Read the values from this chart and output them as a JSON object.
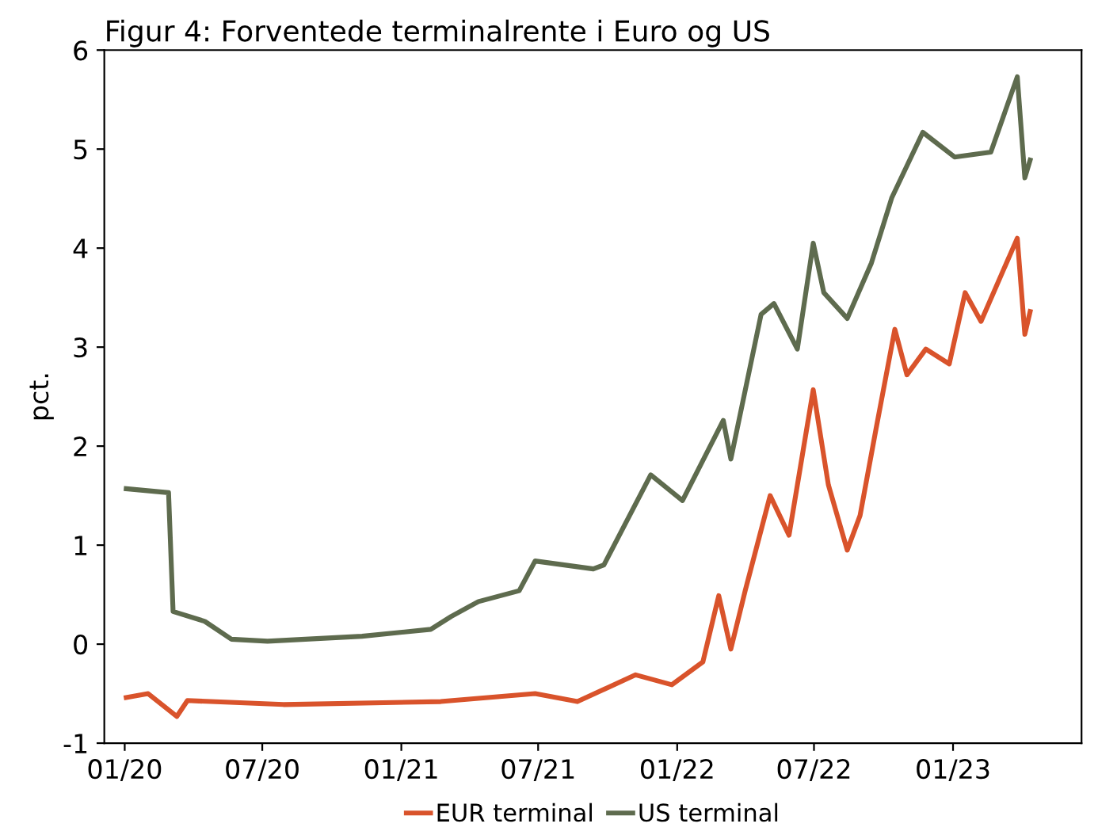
{
  "chart_data": {
    "type": "line",
    "title": "Figur 4: Forventede terminalrente i Euro og US",
    "ylabel": "pct.",
    "xlim": [
      "2019-12-05",
      "2023-06-20"
    ],
    "ylim": [
      -1,
      6
    ],
    "yticks": [
      -1,
      0,
      1,
      2,
      3,
      4,
      5,
      6
    ],
    "xticks": [
      {
        "value": "2020-01-01",
        "label": "01/20"
      },
      {
        "value": "2020-07-01",
        "label": "07/20"
      },
      {
        "value": "2021-01-01",
        "label": "01/21"
      },
      {
        "value": "2021-07-01",
        "label": "07/21"
      },
      {
        "value": "2022-01-01",
        "label": "01/22"
      },
      {
        "value": "2022-07-01",
        "label": "07/22"
      },
      {
        "value": "2023-01-01",
        "label": "01/23"
      }
    ],
    "legend": "bottom",
    "grid": false,
    "marker": "none",
    "line_style": "solid",
    "series": [
      {
        "name": "EUR terminal",
        "color": "#d9532b",
        "x": [
          "2020-01-03",
          "2020-02-01",
          "2020-03-10",
          "2020-03-24",
          "2020-07-29",
          "2021-02-22",
          "2021-06-27",
          "2021-08-22",
          "2021-11-07",
          "2021-12-25",
          "2022-02-04",
          "2022-02-25",
          "2022-03-13",
          "2022-04-01",
          "2022-05-04",
          "2022-05-29",
          "2022-06-30",
          "2022-07-20",
          "2022-08-14",
          "2022-08-31",
          "2022-09-21",
          "2022-10-16",
          "2022-11-01",
          "2022-11-26",
          "2022-12-27",
          "2023-01-17",
          "2023-02-07",
          "2023-03-27",
          "2023-04-06",
          "2023-04-13"
        ],
        "values": [
          -0.54,
          -0.5,
          -0.73,
          -0.57,
          -0.61,
          -0.58,
          -0.5,
          -0.58,
          -0.31,
          -0.41,
          -0.18,
          0.49,
          -0.05,
          0.54,
          1.5,
          1.1,
          2.57,
          1.61,
          0.95,
          1.3,
          2.17,
          3.18,
          2.72,
          2.98,
          2.83,
          3.55,
          3.26,
          4.1,
          3.13,
          3.36
        ]
      },
      {
        "name": "US terminal",
        "color": "#5e6b4e",
        "x": [
          "2020-01-03",
          "2020-02-28",
          "2020-03-05",
          "2020-04-16",
          "2020-05-21",
          "2020-07-08",
          "2020-11-10",
          "2021-02-09",
          "2021-03-08",
          "2021-04-13",
          "2021-06-06",
          "2021-06-27",
          "2021-09-12",
          "2021-09-26",
          "2021-11-27",
          "2022-01-08",
          "2022-03-03",
          "2022-03-13",
          "2022-04-22",
          "2022-05-09",
          "2022-06-09",
          "2022-06-30",
          "2022-07-14",
          "2022-08-14",
          "2022-09-15",
          "2022-10-12",
          "2022-11-22",
          "2023-01-03",
          "2023-02-20",
          "2023-03-27",
          "2023-04-06",
          "2023-04-13"
        ],
        "values": [
          1.57,
          1.53,
          0.33,
          0.23,
          0.05,
          0.03,
          0.08,
          0.15,
          0.28,
          0.43,
          0.54,
          0.84,
          0.76,
          0.8,
          1.71,
          1.45,
          2.26,
          1.87,
          3.33,
          3.44,
          2.98,
          4.05,
          3.55,
          3.29,
          3.85,
          4.51,
          5.17,
          4.92,
          4.97,
          5.73,
          4.71,
          4.89
        ]
      }
    ]
  }
}
